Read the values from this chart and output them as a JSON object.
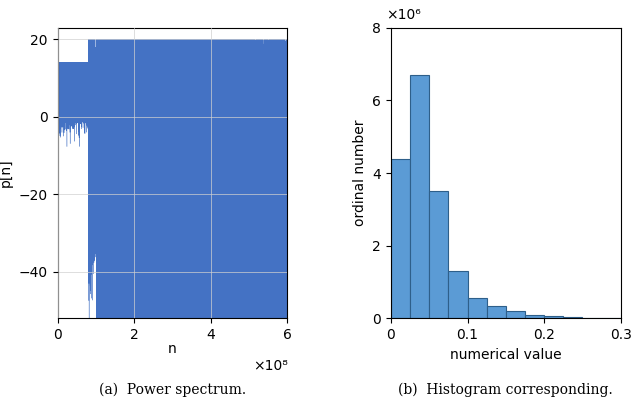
{
  "left_plot": {
    "ylabel": "p[n]",
    "xlabel": "n",
    "xlim": [
      0,
      600000000.0
    ],
    "ylim": [
      -52,
      23
    ],
    "yticks": [
      -40,
      -20,
      0,
      20
    ],
    "xticks": [
      0,
      200000000.0,
      400000000.0,
      600000000.0
    ],
    "xticklabels": [
      "0",
      "2",
      "4",
      "6"
    ],
    "xscale_label": "×10⁸",
    "line_color": "#4472C4",
    "subtitle": "(a)  Power spectrum."
  },
  "right_plot": {
    "bar_heights": [
      4400000,
      6700000,
      3500000,
      1300000,
      550000,
      350000,
      200000,
      100000,
      70000,
      40000,
      20000,
      10000
    ],
    "bar_width": 0.025,
    "bar_left_edges": [
      0.0,
      0.025,
      0.05,
      0.075,
      0.1,
      0.125,
      0.15,
      0.175,
      0.2,
      0.225,
      0.25,
      0.275
    ],
    "bar_color": "#5B9BD5",
    "bar_edgecolor": "#2E5F8A",
    "xlabel": "numerical value",
    "ylabel": "ordinal number",
    "xlim": [
      0,
      0.3
    ],
    "ylim": [
      0,
      8000000
    ],
    "yticks": [
      0,
      2000000,
      4000000,
      6000000,
      8000000
    ],
    "yticklabels": [
      "0",
      "2",
      "4",
      "6",
      "8"
    ],
    "xticks": [
      0,
      0.1,
      0.2,
      0.3
    ],
    "xticklabels": [
      "0",
      "0.1",
      "0.2",
      "0.3"
    ],
    "yscale_label": "×10⁶",
    "subtitle": "(b)  Histogram corresponding."
  },
  "figure": {
    "bg_color": "#ffffff",
    "font_size": 10,
    "subtitle_fontsize": 10
  }
}
